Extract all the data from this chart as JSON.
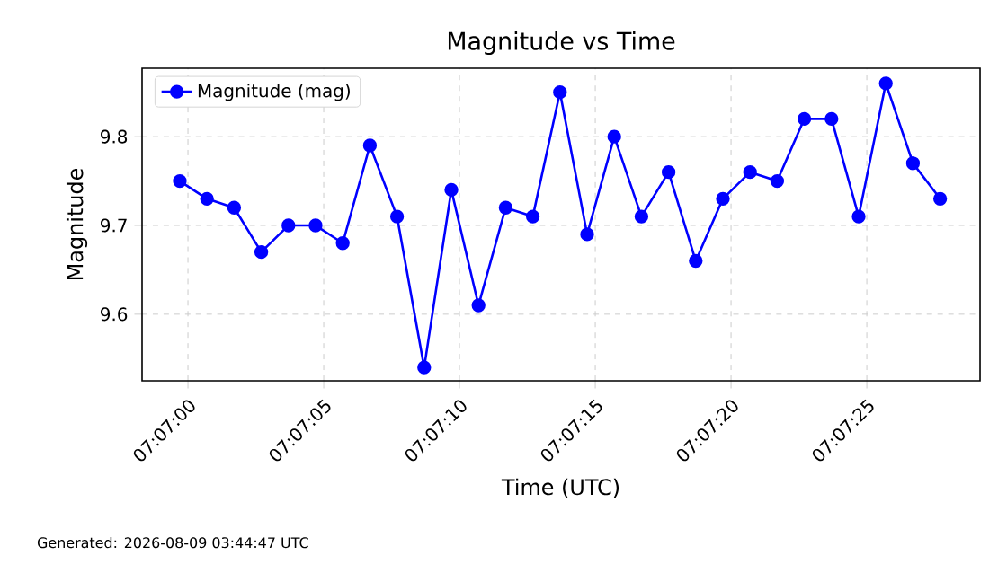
{
  "chart_data": {
    "type": "line",
    "title": "Magnitude vs Time",
    "xlabel": "Time (UTC)",
    "ylabel": "Magnitude",
    "x": [
      7.1165833,
      7.1168611,
      7.1171389,
      7.1174167,
      7.1176944,
      7.1179722,
      7.11825,
      7.1185278,
      7.1188056,
      7.1190833,
      7.1193611,
      7.1196389,
      7.1199167,
      7.1201944,
      7.1204722,
      7.12075,
      7.1210278,
      7.1213056,
      7.1215833,
      7.1218611,
      7.1221389,
      7.1224167,
      7.1226944,
      7.1229722,
      7.12325,
      7.1235278,
      7.1238056,
      7.1240833,
      7.1243611
    ],
    "series": [
      {
        "name": "Magnitude (mag)",
        "color": "#0000ff",
        "values": [
          9.75,
          9.73,
          9.72,
          9.67,
          9.7,
          9.7,
          9.68,
          9.79,
          9.71,
          9.54,
          9.74,
          9.61,
          9.72,
          9.71,
          9.85,
          9.69,
          9.8,
          9.71,
          9.76,
          9.66,
          9.73,
          9.76,
          9.75,
          9.82,
          9.82,
          9.71,
          9.86,
          9.77,
          9.73
        ]
      }
    ],
    "xlim": [
      7.1161972,
      7.1247694
    ],
    "ylim": [
      9.525,
      9.877
    ],
    "xticks": [
      {
        "value": 7.1166667,
        "label": "07:07:00"
      },
      {
        "value": 7.1180556,
        "label": "07:07:05"
      },
      {
        "value": 7.1194444,
        "label": "07:07:10"
      },
      {
        "value": 7.1208333,
        "label": "07:07:15"
      },
      {
        "value": 7.1222222,
        "label": "07:07:20"
      },
      {
        "value": 7.1236111,
        "label": "07:07:25"
      }
    ],
    "yticks": [
      9.6,
      9.7,
      9.8
    ],
    "grid": true,
    "legend": "top left",
    "marker": "circle",
    "line_style": "solid",
    "annotations": [
      "Generated: 2026-08-09 03:44:47 UTC"
    ]
  }
}
